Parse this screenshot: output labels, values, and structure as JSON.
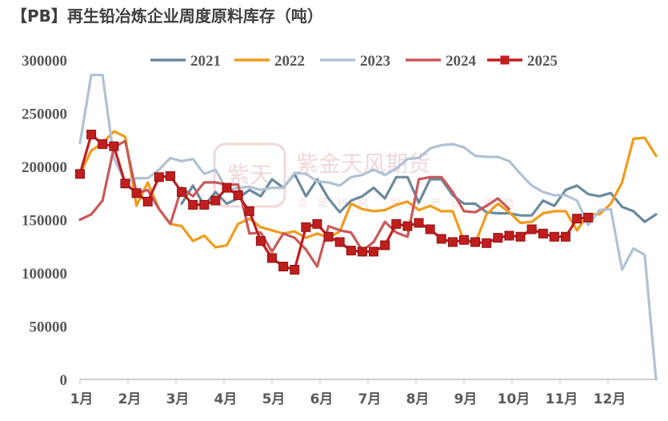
{
  "title": "【PB】再生铅冶炼企业周度原料库存（吨）",
  "watermark": {
    "text": "紫金天风期货",
    "sub": "立足研究 服务产业 驱动",
    "logo": "紫天"
  },
  "chart_data": {
    "type": "line",
    "ylim": [
      0,
      300000
    ],
    "yticks": [
      "300000",
      "250000",
      "200000",
      "150000",
      "100000",
      "50000",
      "0"
    ],
    "ytick_values": [
      300000,
      250000,
      200000,
      150000,
      100000,
      50000,
      0
    ],
    "xlim": [
      1,
      52
    ],
    "month_labels": [
      "1月",
      "2月",
      "3月",
      "4月",
      "5月",
      "6月",
      "7月",
      "8月",
      "9月",
      "10月",
      "11月",
      "12月"
    ],
    "legend_position": "top",
    "series": [
      {
        "name": "2021",
        "color": "#6a8a9e",
        "marker": false,
        "x": [
          10,
          11,
          12,
          13,
          14,
          15,
          16,
          17,
          18,
          19,
          20,
          21,
          22,
          23,
          24,
          25,
          26,
          27,
          28,
          29,
          30,
          31,
          32,
          33,
          34,
          35,
          36,
          37,
          38,
          39,
          40,
          41,
          42,
          43,
          44,
          45,
          46,
          47,
          48,
          49,
          50,
          51,
          52
        ],
        "y": [
          165000,
          182000,
          163000,
          176000,
          165000,
          170000,
          178000,
          172000,
          188000,
          180000,
          193000,
          172000,
          188000,
          170000,
          157000,
          168000,
          172000,
          180000,
          170000,
          190000,
          190000,
          166000,
          188000,
          188000,
          173000,
          165000,
          165000,
          157000,
          156000,
          156000,
          154000,
          154000,
          168000,
          163000,
          178000,
          182000,
          174000,
          172000,
          175000,
          162000,
          158000,
          148000,
          155000
        ]
      },
      {
        "name": "2022",
        "color": "#f29b1c",
        "marker": false,
        "x": [
          1,
          2,
          3,
          4,
          5,
          6,
          7,
          8,
          9,
          10,
          11,
          12,
          13,
          14,
          15,
          16,
          17,
          18,
          19,
          20,
          21,
          22,
          23,
          24,
          25,
          26,
          27,
          28,
          29,
          30,
          31,
          32,
          33,
          34,
          35,
          36,
          37,
          38,
          39,
          40,
          41,
          42,
          43,
          44,
          45,
          46,
          47,
          48,
          49,
          50,
          51,
          52
        ],
        "y": [
          193000,
          215000,
          222000,
          233000,
          228000,
          163000,
          185000,
          160000,
          146000,
          144000,
          130000,
          135000,
          124000,
          126000,
          146000,
          151000,
          143000,
          140000,
          137000,
          139000,
          133000,
          137000,
          133000,
          139000,
          165000,
          160000,
          158000,
          159000,
          164000,
          167000,
          159000,
          163000,
          158000,
          158000,
          130000,
          128000,
          155000,
          165000,
          157000,
          147000,
          148000,
          156000,
          158000,
          158000,
          140000,
          155000,
          155000,
          165000,
          185000,
          226000,
          227000,
          210000
        ]
      },
      {
        "name": "2023",
        "color": "#b0c2d4",
        "marker": false,
        "x": [
          1,
          2,
          3,
          4,
          5,
          6,
          7,
          8,
          9,
          10,
          11,
          12,
          13,
          14,
          15,
          16,
          17,
          18,
          19,
          20,
          21,
          22,
          23,
          24,
          25,
          26,
          27,
          28,
          29,
          30,
          31,
          32,
          33,
          34,
          35,
          36,
          37,
          38,
          39,
          40,
          41,
          42,
          43,
          44,
          45,
          46,
          47,
          48,
          49,
          50,
          51,
          52
        ],
        "y": [
          222000,
          286000,
          286000,
          208000,
          185000,
          189000,
          189000,
          197000,
          208000,
          205000,
          207000,
          193000,
          197000,
          178000,
          180000,
          181000,
          178000,
          180000,
          180000,
          194000,
          193000,
          186000,
          185000,
          182000,
          190000,
          192000,
          197000,
          192000,
          198000,
          207000,
          208000,
          217000,
          220000,
          221000,
          218000,
          210000,
          209000,
          209000,
          205000,
          193000,
          182000,
          176000,
          173000,
          173000,
          168000,
          145000,
          159000,
          160000,
          103000,
          123000,
          117000,
          0
        ]
      },
      {
        "name": "2024",
        "color": "#c9595a",
        "marker": false,
        "x": [
          1,
          2,
          3,
          4,
          5,
          6,
          7,
          8,
          9,
          10,
          11,
          12,
          13,
          14,
          15,
          16,
          17,
          18,
          19,
          20,
          21,
          22,
          23,
          24,
          25,
          26,
          27,
          28,
          29,
          30,
          31,
          32,
          33,
          34,
          35,
          36,
          37,
          38,
          39
        ],
        "y": [
          150000,
          155000,
          168000,
          218000,
          224000,
          175000,
          178000,
          160000,
          146000,
          180000,
          172000,
          185000,
          185000,
          183000,
          183000,
          137000,
          138000,
          120000,
          137000,
          133000,
          122000,
          106000,
          144000,
          140000,
          138000,
          121000,
          129000,
          148000,
          138000,
          134000,
          188000,
          190000,
          190000,
          176000,
          158000,
          157000,
          163000,
          170000,
          160000
        ]
      },
      {
        "name": "2025",
        "color": "#c01e1e",
        "marker": true,
        "x": [
          1,
          2,
          3,
          4,
          5,
          6,
          7,
          8,
          9,
          10,
          11,
          12,
          13,
          14,
          15,
          16,
          17,
          18,
          19,
          20,
          21,
          22,
          23,
          24,
          25,
          26,
          27,
          28,
          29,
          30,
          31,
          32,
          33,
          34,
          35,
          36,
          37,
          38,
          39,
          40,
          41,
          42,
          43,
          44,
          45,
          46
        ],
        "y": [
          193000,
          230000,
          221000,
          219000,
          184000,
          175000,
          167000,
          190000,
          191000,
          176000,
          164000,
          164000,
          168000,
          180000,
          173000,
          158000,
          130000,
          114000,
          106000,
          103000,
          143000,
          146000,
          134000,
          129000,
          121000,
          120000,
          120000,
          126000,
          146000,
          144000,
          147000,
          141000,
          132000,
          129000,
          131000,
          129000,
          128000,
          133000,
          135000,
          134000,
          141000,
          137000,
          134000,
          134000,
          151000,
          152000
        ]
      }
    ]
  }
}
